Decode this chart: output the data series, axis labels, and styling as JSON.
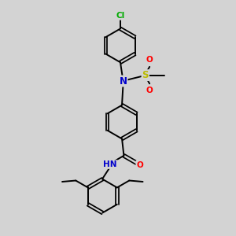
{
  "background_color": "#d3d3d3",
  "atom_colors": {
    "C": "#000000",
    "N": "#0000cc",
    "O": "#ff0000",
    "S": "#bbbb00",
    "Cl": "#00aa00",
    "H": "#000000"
  },
  "bond_color": "#000000",
  "figsize": [
    3.0,
    3.0
  ],
  "dpi": 100,
  "lw": 1.4,
  "r": 0.72
}
